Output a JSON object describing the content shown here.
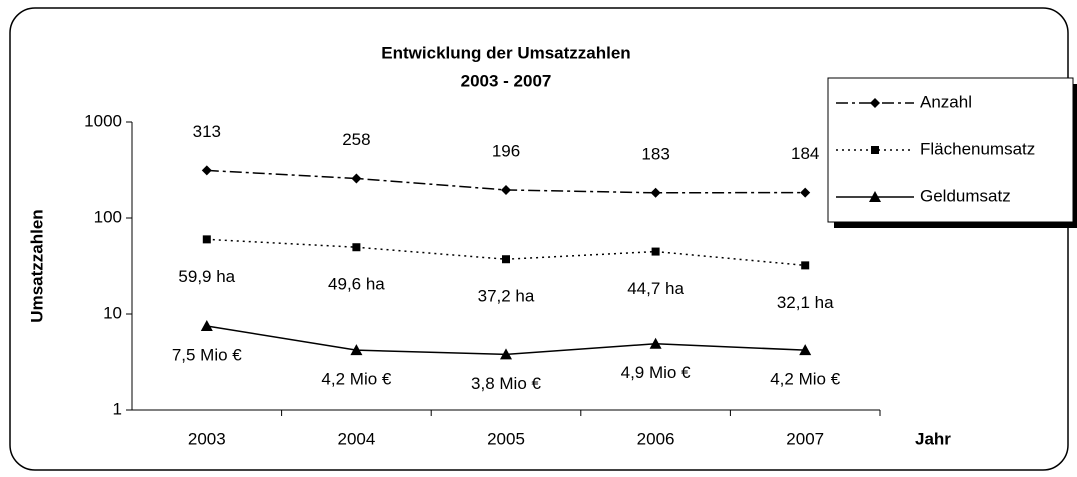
{
  "chart_data": {
    "type": "line",
    "title": "Entwicklung der Umsatzzahlen",
    "subtitle": "2003 - 2007",
    "x_label": "Jahr",
    "y_label": "Umsatzzahlen",
    "categories": [
      "2003",
      "2004",
      "2005",
      "2006",
      "2007"
    ],
    "series": [
      {
        "name": "Anzahl",
        "color": "#000000",
        "marker": "diamond",
        "dash": "dashdot",
        "values": [
          313,
          258,
          196,
          183,
          184
        ]
      },
      {
        "name": "Flächenumsatz",
        "color": "#000000",
        "marker": "square",
        "dash": "dotted",
        "values": [
          59.9,
          49.6,
          37.2,
          44.7,
          32.1
        ],
        "value_labels": [
          "59,9 ha",
          "49,6 ha",
          "37,2 ha",
          "44,7 ha",
          "32,1 ha"
        ]
      },
      {
        "name": "Geldumsatz",
        "color": "#000000",
        "marker": "triangle",
        "dash": "solid",
        "values": [
          7.5,
          4.2,
          3.8,
          4.9,
          4.2
        ],
        "value_labels": [
          "7,5 Mio €",
          "4,2 Mio €",
          "3,8 Mio €",
          "4,9 Mio €",
          "4,2 Mio €"
        ]
      }
    ],
    "ylim": [
      1,
      1000
    ],
    "yticks": [
      1,
      10,
      100,
      1000
    ],
    "log_scale": true,
    "grid": false,
    "legend": "right"
  }
}
